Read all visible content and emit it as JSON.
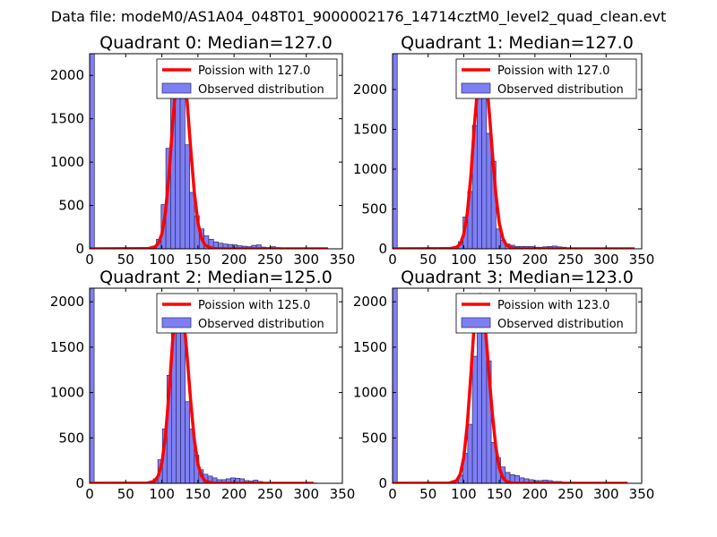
{
  "figure_title": "Data file: modeM0/AS1A04_048T01_9000002176_14714cztM0_level2_quad_clean.evt",
  "colors": {
    "hist_fill": "#7f7ff4",
    "hist_edge": "#2a2a6a",
    "poisson": "#ff0000"
  },
  "chart_data": [
    {
      "type": "bar",
      "title": "Quadrant 0: Median=127.0",
      "xlim": [
        0,
        350
      ],
      "ylim": [
        0,
        2250
      ],
      "xticks": [
        "0",
        "50",
        "100",
        "150",
        "200",
        "250",
        "300",
        "350"
      ],
      "yticks": [
        "0",
        "500",
        "1000",
        "1500",
        "2000"
      ],
      "ytick_values": [
        0,
        500,
        1000,
        1500,
        2000
      ],
      "legend": {
        "line_label": "Poission with 127.0",
        "hist_label": "Observed distribution",
        "position": "top-right"
      },
      "bin_width": 6.6,
      "histogram": {
        "x": [
          0,
          6.6,
          13.2,
          19.8,
          26.4,
          33,
          39.6,
          46.2,
          52.8,
          59.4,
          66,
          72.6,
          79.2,
          85.8,
          92.4,
          99,
          105.6,
          112.2,
          118.8,
          125.4,
          132,
          138.6,
          145.2,
          151.8,
          158.4,
          165,
          171.6,
          178.2,
          184.8,
          191.4,
          198,
          204.6,
          211.2,
          217.8,
          224.4,
          231,
          237.6,
          244.2,
          250.8,
          257.4,
          264,
          270.6,
          277.2,
          283.8,
          290.4,
          297,
          303.6,
          310.2,
          316.8,
          323.4
        ],
        "counts": [
          2250,
          0,
          0,
          0,
          0,
          0,
          0,
          0,
          0,
          0,
          0,
          0,
          15,
          30,
          110,
          510,
          1160,
          1800,
          1920,
          2000,
          1200,
          650,
          380,
          230,
          150,
          110,
          80,
          65,
          55,
          50,
          45,
          35,
          30,
          25,
          40,
          45,
          20,
          15,
          25,
          15,
          10,
          8,
          8,
          5,
          5,
          5,
          3,
          3,
          3,
          3
        ]
      },
      "poisson": {
        "x": [
          0,
          80,
          90,
          95,
          100,
          105,
          110,
          115,
          120,
          125,
          127,
          130,
          135,
          140,
          145,
          150,
          155,
          160,
          170,
          180,
          200,
          250,
          330
        ],
        "y": [
          0,
          2,
          20,
          60,
          170,
          420,
          860,
          1450,
          1950,
          2150,
          2160,
          2080,
          1700,
          1150,
          650,
          300,
          120,
          40,
          5,
          0,
          0,
          0,
          0
        ]
      }
    },
    {
      "type": "bar",
      "title": "Quadrant 1: Median=127.0",
      "xlim": [
        0,
        350
      ],
      "ylim": [
        0,
        2450
      ],
      "xticks": [
        "0",
        "50",
        "100",
        "150",
        "200",
        "250",
        "300",
        "350"
      ],
      "yticks": [
        "0",
        "500",
        "1000",
        "1500",
        "2000"
      ],
      "ytick_values": [
        0,
        500,
        1000,
        1500,
        2000
      ],
      "legend": {
        "line_label": "Poission with 127.0",
        "hist_label": "Observed distribution",
        "position": "top-right"
      },
      "bin_width": 6.6,
      "histogram": {
        "x": [
          0,
          6.6,
          13.2,
          19.8,
          26.4,
          33,
          39.6,
          46.2,
          52.8,
          59.4,
          66,
          72.6,
          79.2,
          85.8,
          92.4,
          99,
          105.6,
          112.2,
          118.8,
          125.4,
          132,
          138.6,
          145.2,
          151.8,
          158.4,
          165,
          171.6,
          178.2,
          184.8,
          191.4,
          198,
          204.6,
          211.2,
          217.8,
          224.4,
          231,
          237.6,
          244.2,
          250.8,
          257.4,
          264,
          270.6,
          277.2,
          283.8,
          290.4,
          297,
          303.6,
          310.2,
          316.8,
          323.4
        ],
        "counts": [
          2450,
          0,
          0,
          0,
          0,
          0,
          0,
          0,
          0,
          0,
          0,
          0,
          10,
          20,
          90,
          400,
          720,
          1550,
          2120,
          1950,
          1450,
          1100,
          250,
          110,
          60,
          45,
          30,
          30,
          30,
          30,
          20,
          20,
          25,
          30,
          35,
          25,
          20,
          10,
          10,
          5,
          5,
          5,
          5,
          3,
          3,
          3,
          3,
          3,
          3,
          2
        ]
      },
      "poisson": {
        "x": [
          0,
          80,
          90,
          95,
          100,
          105,
          110,
          115,
          120,
          125,
          127,
          130,
          135,
          140,
          145,
          150,
          155,
          160,
          170,
          180,
          200,
          250,
          340
        ],
        "y": [
          0,
          2,
          20,
          60,
          180,
          450,
          920,
          1550,
          2080,
          2320,
          2350,
          2250,
          1820,
          1230,
          690,
          320,
          130,
          45,
          5,
          0,
          0,
          0,
          0
        ]
      }
    },
    {
      "type": "bar",
      "title": "Quadrant 2: Median=125.0",
      "xlim": [
        0,
        350
      ],
      "ylim": [
        0,
        2150
      ],
      "xticks": [
        "0",
        "50",
        "100",
        "150",
        "200",
        "250",
        "300",
        "350"
      ],
      "yticks": [
        "0",
        "500",
        "1000",
        "1500",
        "2000"
      ],
      "ytick_values": [
        0,
        500,
        1000,
        1500,
        2000
      ],
      "legend": {
        "line_label": "Poission with 125.0",
        "hist_label": "Observed distribution",
        "position": "top-right"
      },
      "bin_width": 6.3,
      "histogram": {
        "x": [
          0,
          6.3,
          12.6,
          18.9,
          25.2,
          31.5,
          37.8,
          44.1,
          50.4,
          56.7,
          63,
          69.3,
          75.6,
          81.9,
          88.2,
          94.5,
          100.8,
          107.1,
          113.4,
          119.7,
          126,
          132.3,
          138.6,
          144.9,
          151.2,
          157.5,
          163.8,
          170.1,
          176.4,
          182.7,
          189,
          195.3,
          201.6,
          207.9,
          214.2,
          220.5,
          226.8,
          233.1,
          239.4,
          245.7,
          252,
          258.3,
          264.6,
          270.9,
          277.2,
          283.5,
          289.8,
          296.1,
          302.4,
          308.7
        ],
        "counts": [
          2150,
          0,
          0,
          0,
          0,
          0,
          0,
          0,
          0,
          0,
          0,
          0,
          10,
          20,
          50,
          260,
          600,
          1190,
          1720,
          1950,
          1700,
          900,
          600,
          310,
          150,
          100,
          80,
          60,
          40,
          40,
          50,
          60,
          55,
          50,
          30,
          25,
          35,
          20,
          10,
          10,
          10,
          8,
          8,
          5,
          5,
          3,
          3,
          3,
          3,
          3
        ]
      },
      "poisson": {
        "x": [
          0,
          80,
          90,
          95,
          100,
          105,
          110,
          115,
          120,
          125,
          130,
          135,
          140,
          145,
          150,
          155,
          160,
          170,
          180,
          200,
          250,
          310
        ],
        "y": [
          0,
          3,
          25,
          80,
          220,
          520,
          1000,
          1580,
          2000,
          2050,
          1850,
          1400,
          900,
          480,
          210,
          80,
          25,
          3,
          0,
          0,
          0,
          0
        ]
      }
    },
    {
      "type": "bar",
      "title": "Quadrant 3: Median=123.0",
      "xlim": [
        0,
        350
      ],
      "ylim": [
        0,
        2150
      ],
      "xticks": [
        "0",
        "50",
        "100",
        "150",
        "200",
        "250",
        "300",
        "350"
      ],
      "yticks": [
        "0",
        "500",
        "1000",
        "1500",
        "2000"
      ],
      "ytick_values": [
        0,
        500,
        1000,
        1500,
        2000
      ],
      "legend": {
        "line_label": "Poission with 123.0",
        "hist_label": "Observed distribution",
        "position": "top-right"
      },
      "bin_width": 6.6,
      "histogram": {
        "x": [
          0,
          6.6,
          13.2,
          19.8,
          26.4,
          33,
          39.6,
          46.2,
          52.8,
          59.4,
          66,
          72.6,
          79.2,
          85.8,
          92.4,
          99,
          105.6,
          112.2,
          118.8,
          125.4,
          132,
          138.6,
          145.2,
          151.8,
          158.4,
          165,
          171.6,
          178.2,
          184.8,
          191.4,
          198,
          204.6,
          211.2,
          217.8,
          224.4,
          231,
          237.6,
          244.2,
          250.8,
          257.4,
          264,
          270.6,
          277.2,
          283.8,
          290.4,
          297,
          303.6,
          310.2,
          316.8,
          323.4
        ],
        "counts": [
          2150,
          0,
          0,
          0,
          0,
          0,
          0,
          0,
          0,
          0,
          0,
          0,
          10,
          20,
          90,
          330,
          650,
          1400,
          1920,
          1880,
          1350,
          450,
          280,
          180,
          120,
          95,
          85,
          60,
          50,
          40,
          30,
          30,
          35,
          30,
          20,
          20,
          12,
          8,
          6,
          5,
          5,
          5,
          3,
          3,
          3,
          3,
          3,
          3,
          3,
          3
        ]
      },
      "poisson": {
        "x": [
          0,
          80,
          90,
          95,
          100,
          105,
          110,
          115,
          120,
          123,
          125,
          130,
          135,
          140,
          145,
          150,
          155,
          160,
          170,
          180,
          200,
          250,
          330
        ],
        "y": [
          0,
          3,
          30,
          100,
          280,
          650,
          1200,
          1780,
          2060,
          2080,
          2050,
          1750,
          1250,
          780,
          400,
          170,
          60,
          20,
          2,
          0,
          0,
          0,
          0
        ]
      }
    }
  ]
}
